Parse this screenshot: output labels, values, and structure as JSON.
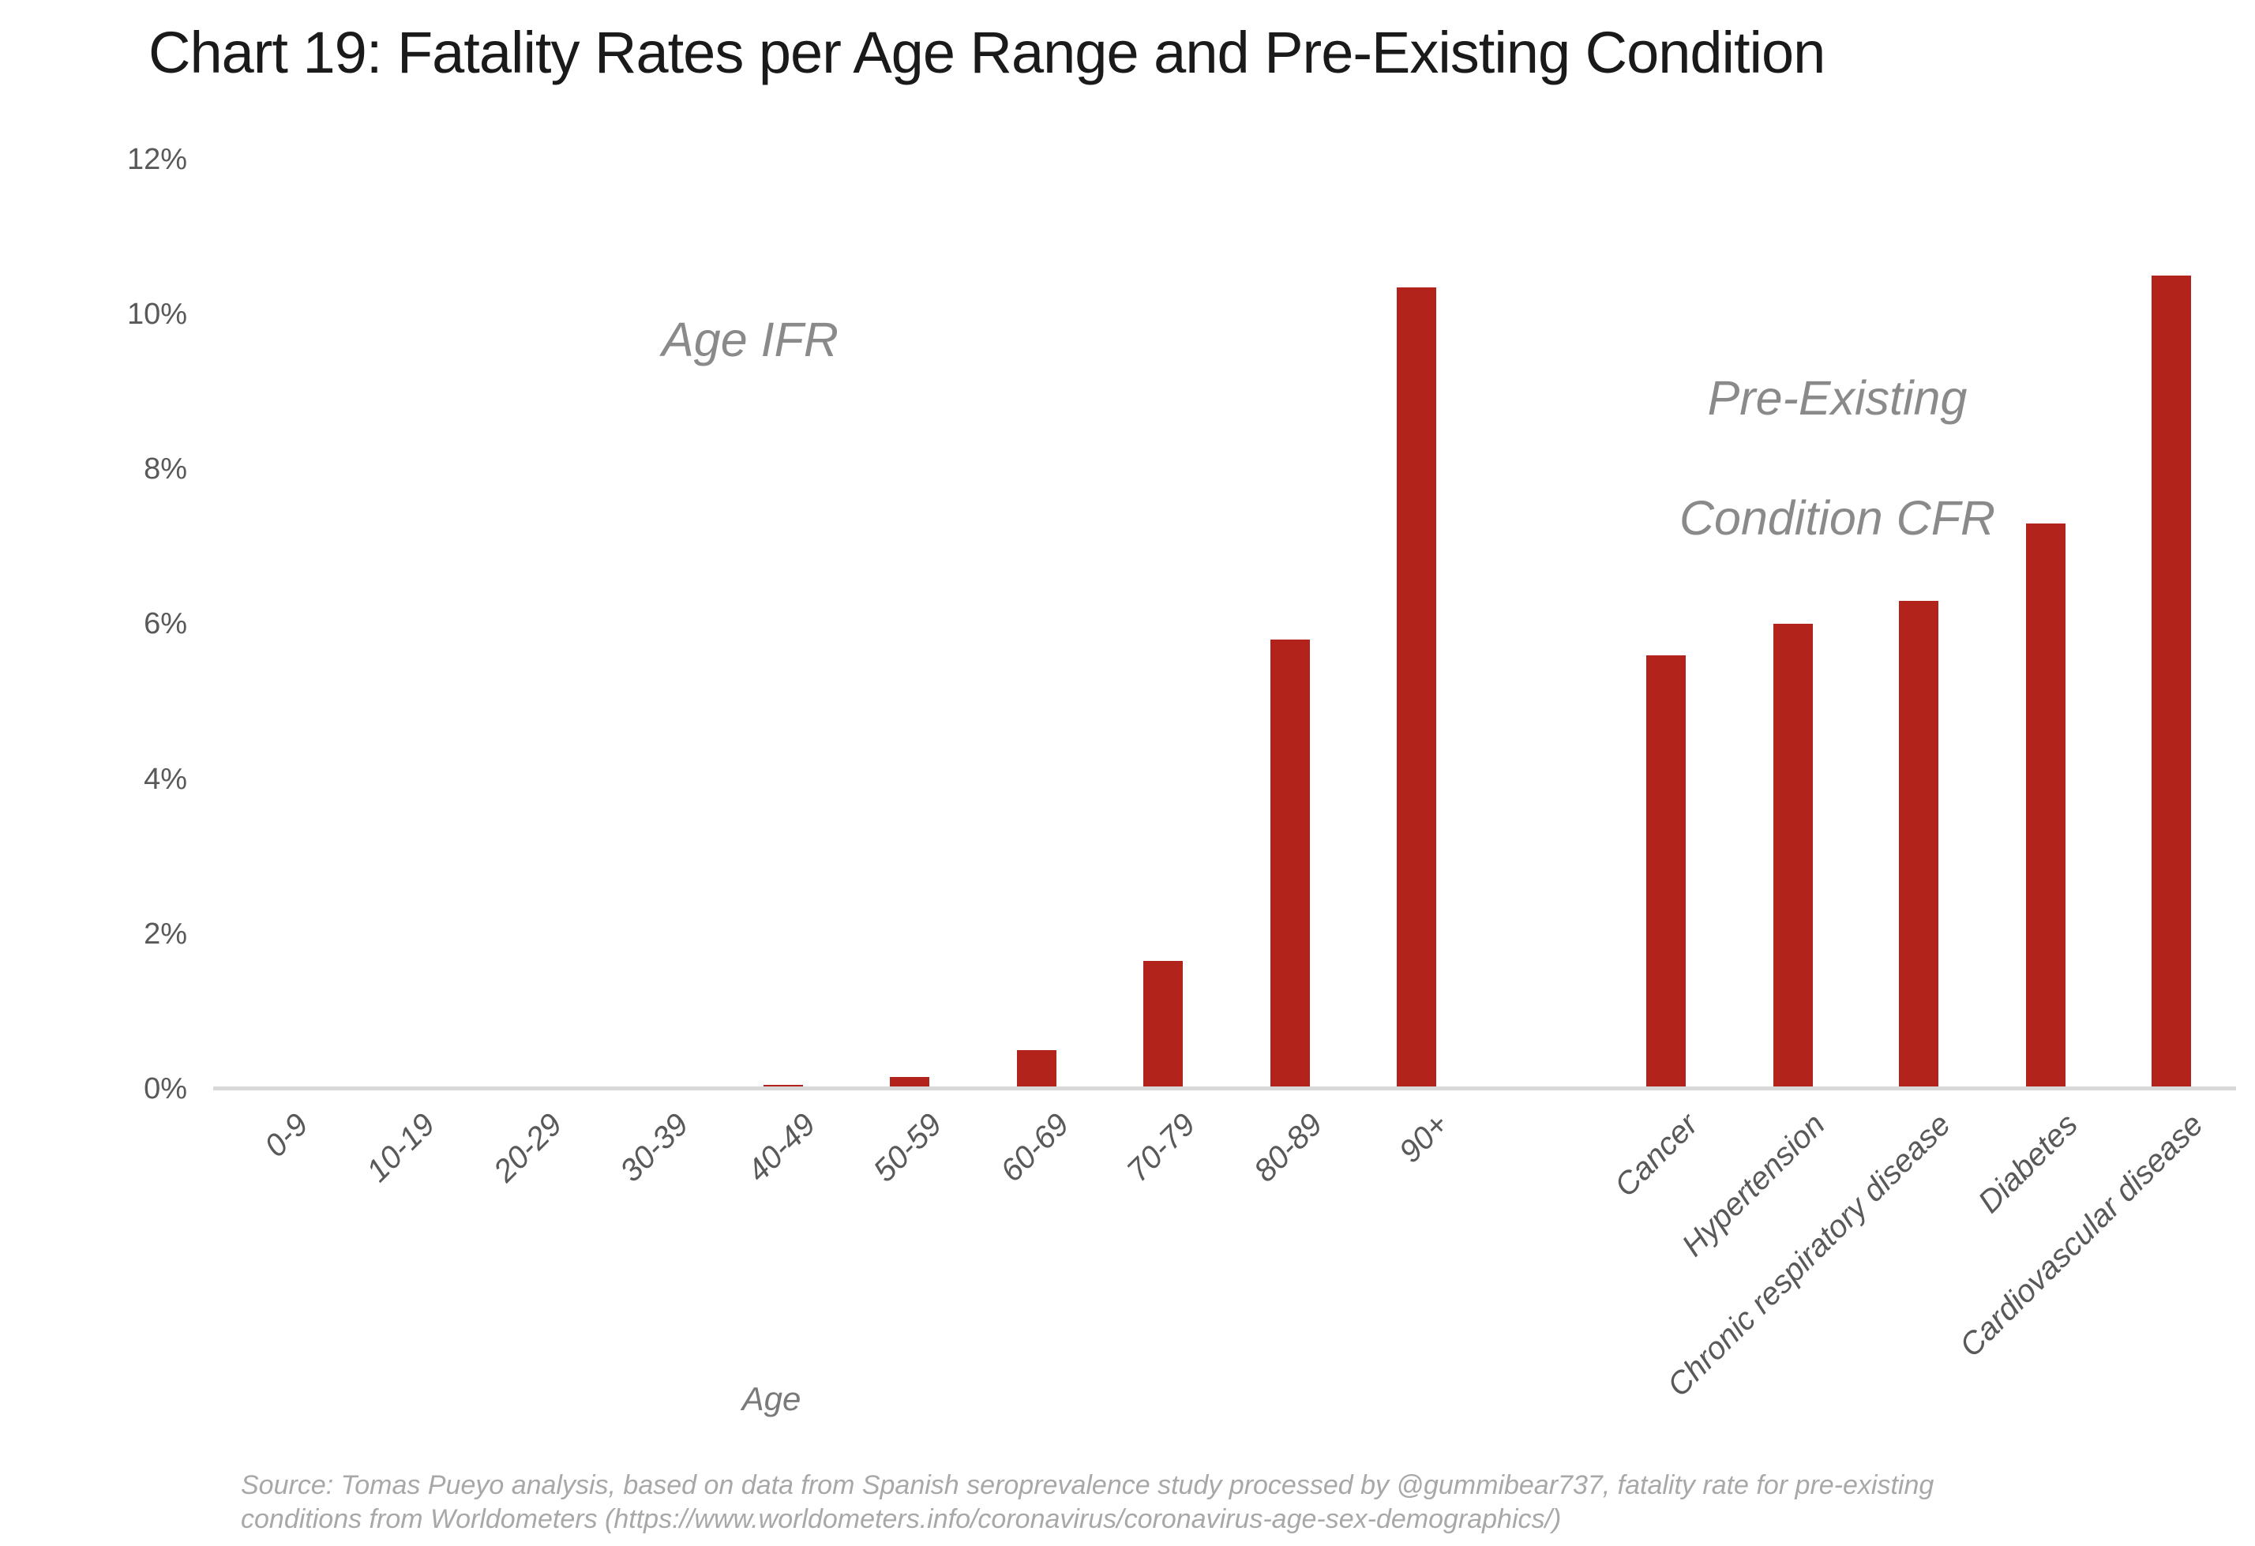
{
  "title": "Chart 19: Fatality Rates per Age Range and Pre-Existing Condition",
  "annotations": {
    "left_section_label": "Age IFR",
    "right_section_label_line1": "Pre-Existing",
    "right_section_label_line2": "Condition CFR"
  },
  "x_axis": {
    "age_axis_title": "Age"
  },
  "source": {
    "line1": "Source: Tomas Pueyo analysis, based on data from Spanish seroprevalence study processed by @gummibear737, fatality rate for pre-existing",
    "line2": "conditions from Worldometers (https://www.worldometers.info/coronavirus/coronavirus-age-sex-demographics/)"
  },
  "colors": {
    "bar": "#b2231c",
    "axis_line": "#d9d9d9",
    "title_text": "#1a1a1a",
    "tick_text": "#595959",
    "section_label_text": "#8a8a8a",
    "axis_title_text": "#7a7a7a",
    "source_text": "#a8a8a8"
  },
  "chart_data": {
    "type": "bar",
    "title": "Chart 19: Fatality Rates per Age Range and Pre-Existing Condition",
    "xlabel": "Age",
    "ylabel": "",
    "ylim": [
      0,
      12
    ],
    "grid": false,
    "legend_position": "none",
    "y_ticks": [
      {
        "label": "0%",
        "value": 0
      },
      {
        "label": "2%",
        "value": 2
      },
      {
        "label": "4%",
        "value": 4
      },
      {
        "label": "6%",
        "value": 6
      },
      {
        "label": "8%",
        "value": 8
      },
      {
        "label": "10%",
        "value": 10
      },
      {
        "label": "12%",
        "value": 12
      }
    ],
    "series": [
      {
        "name": "Age IFR",
        "categories": [
          "0-9",
          "10-19",
          "20-29",
          "30-39",
          "40-49",
          "50-59",
          "60-69",
          "70-79",
          "80-89",
          "90+"
        ],
        "values": [
          0.03,
          0.03,
          0.03,
          0.03,
          0.05,
          0.15,
          0.5,
          1.65,
          5.8,
          10.35
        ]
      },
      {
        "name": "Pre-Existing Condition CFR",
        "categories": [
          "Cancer",
          "Hypertension",
          "Chronic respiratory disease",
          "Diabetes",
          "Cardiovascular disease"
        ],
        "values": [
          5.6,
          6.0,
          6.3,
          7.3,
          10.5
        ]
      }
    ]
  }
}
